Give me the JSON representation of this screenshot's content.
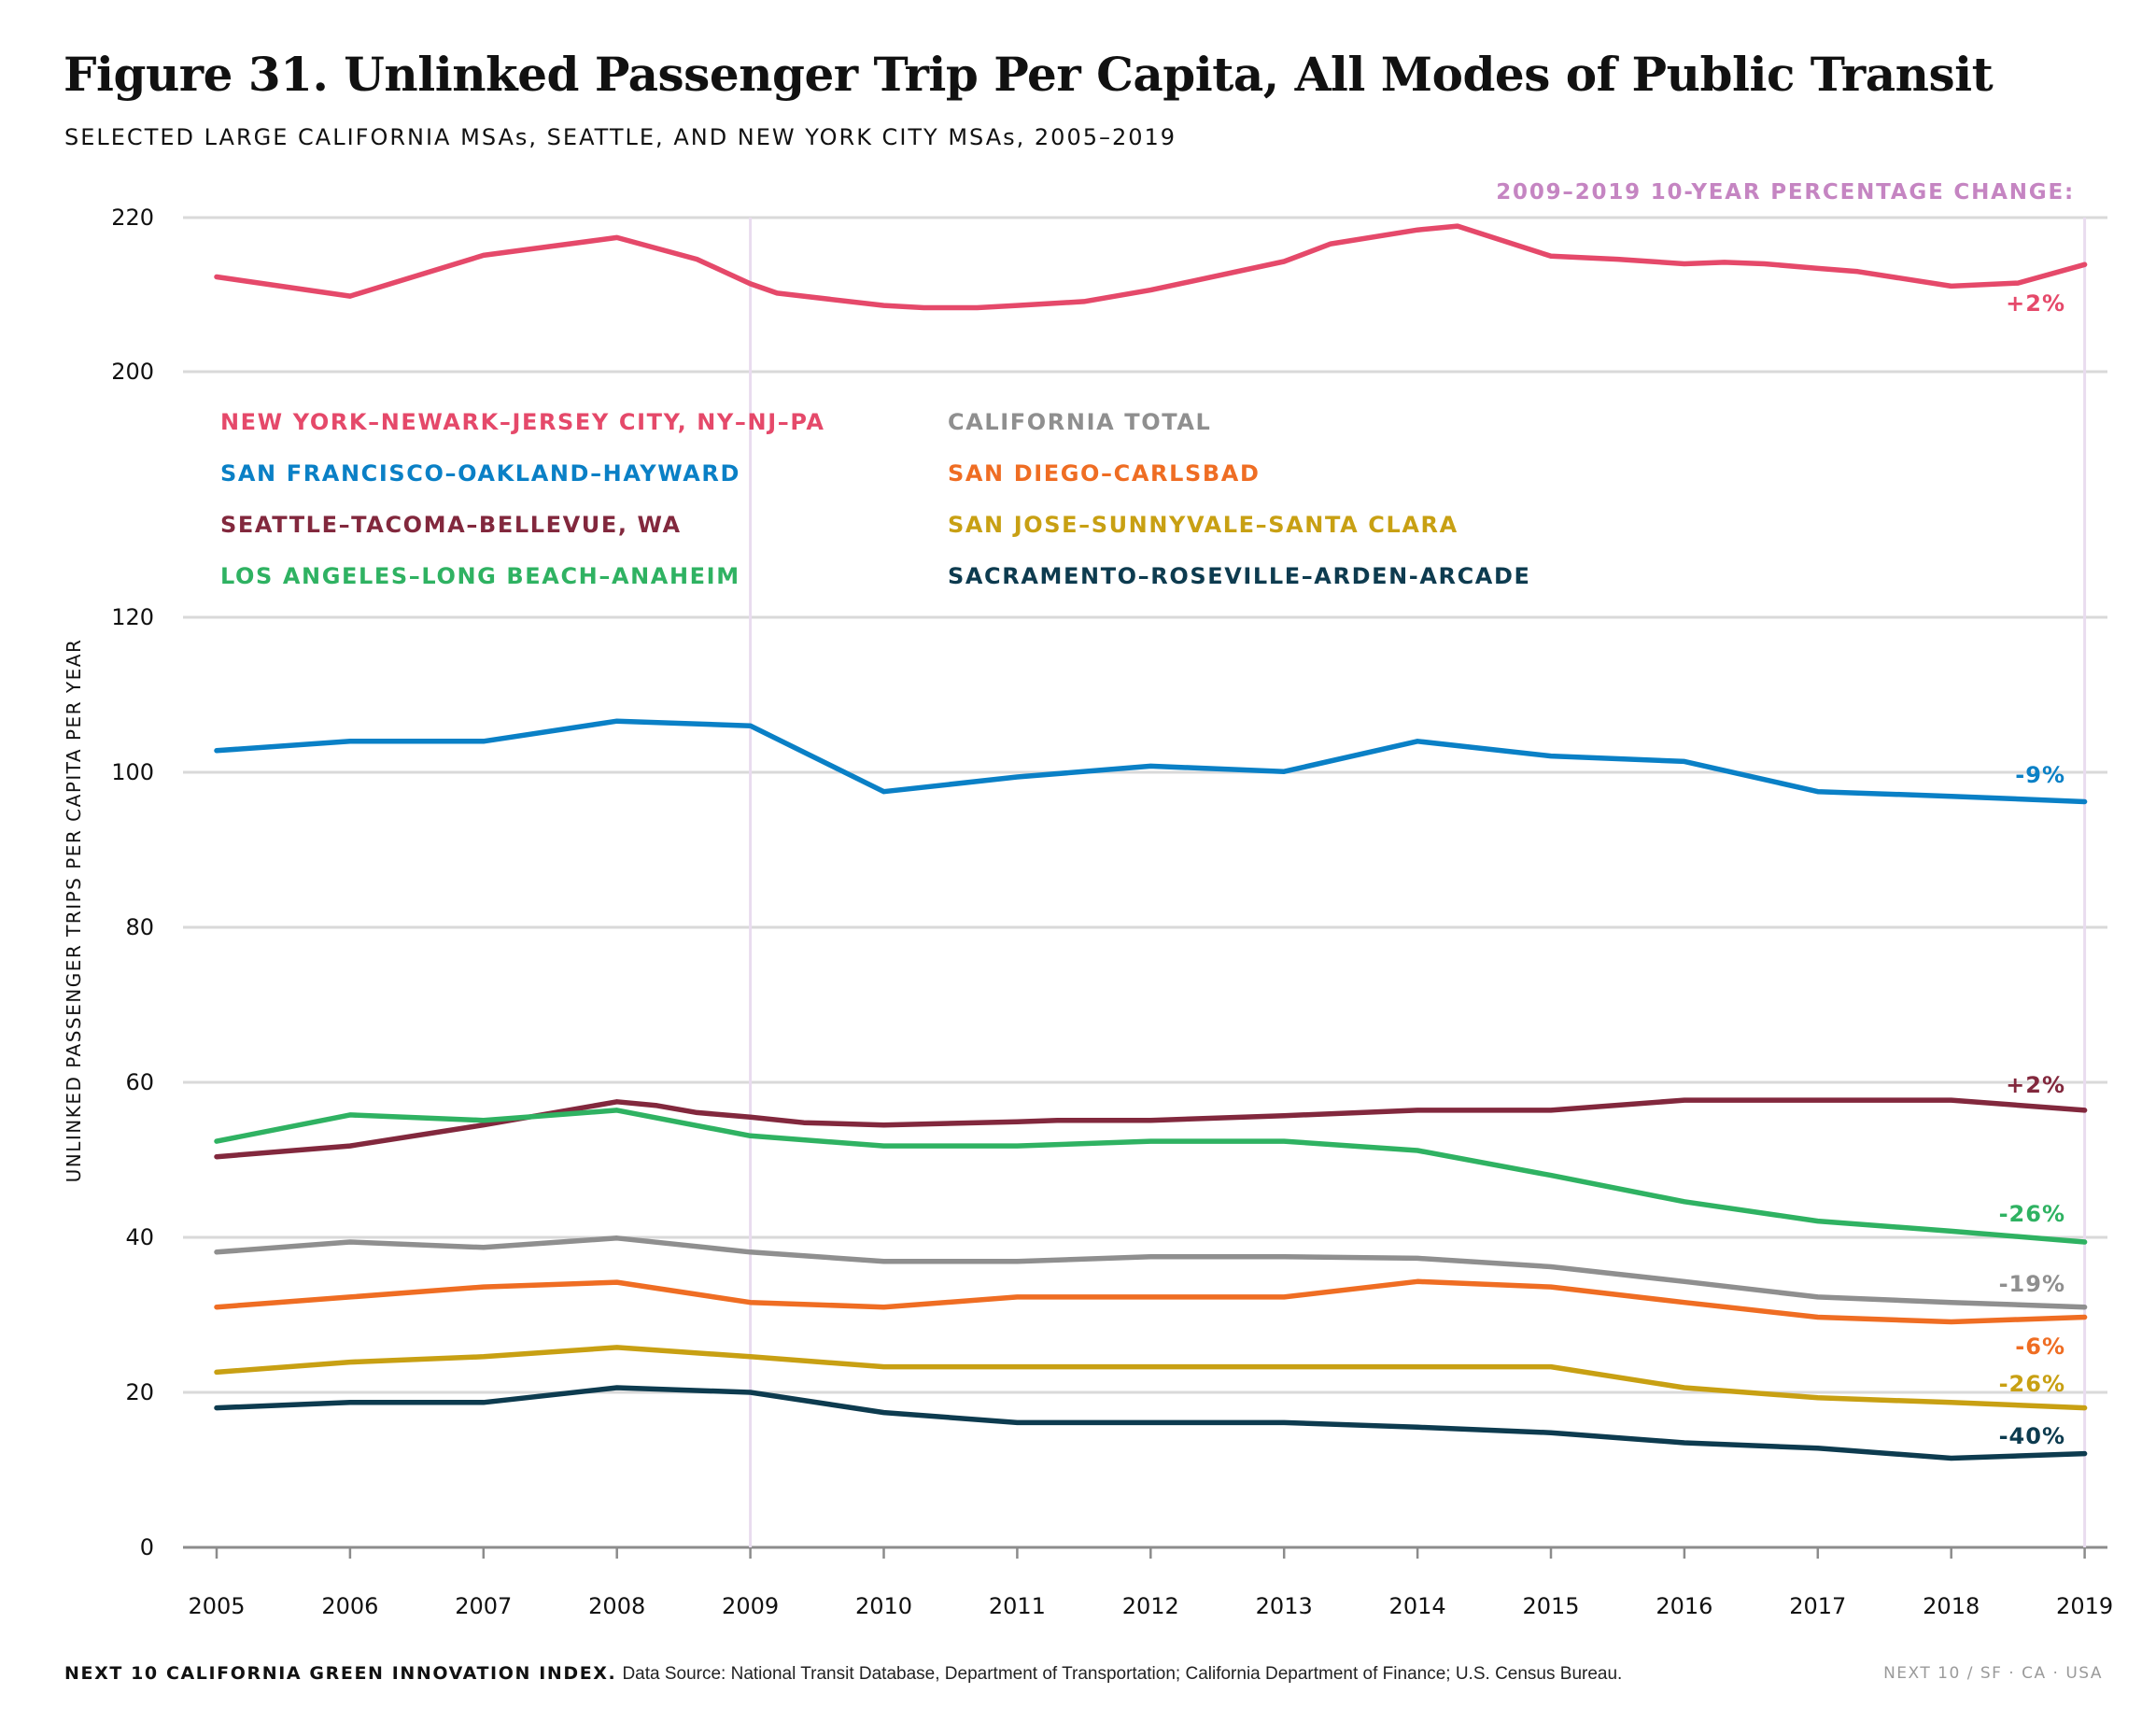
{
  "title": "Figure 31. Unlinked Passenger Trip Per Capita, All Modes of Public Transit",
  "subtitle": "SELECTED LARGE CALIFORNIA MSAs, SEATTLE, AND NEW YORK CITY MSAs, 2005–2019",
  "footer": {
    "lead": "NEXT 10 CALIFORNIA GREEN INNOVATION INDEX.",
    "source": "Data Source: National Transit Database, Department of Transportation; California Department of Finance; U.S. Census Bureau.",
    "right": "NEXT 10 / SF · CA · USA"
  },
  "chart_data": {
    "type": "line",
    "ylabel": "UNLINKED PASSENGER TRIPS PER CAPITA PER YEAR",
    "xlabel": "",
    "change_header": "2009–2019 10-YEAR PERCENTAGE CHANGE:",
    "highlight_years": [
      "2009",
      "2019"
    ],
    "y_axis_broken": true,
    "y_segments": [
      {
        "range": [
          0,
          120
        ],
        "ticks": [
          0,
          20,
          40,
          60,
          80,
          100,
          120
        ]
      },
      {
        "range": [
          200,
          220
        ],
        "ticks": [
          200,
          220
        ]
      }
    ],
    "grid": true,
    "x": [
      "2005",
      "2006",
      "2007",
      "2008",
      "2009",
      "2010",
      "2011",
      "2012",
      "2013",
      "2014",
      "2015",
      "2016",
      "2017",
      "2018",
      "2019"
    ],
    "series": [
      {
        "name": "NEW YORK–NEWARK–JERSEY CITY, NY–NJ–PA",
        "color": "#e5496a",
        "change": "+2%",
        "points": [
          [
            2005,
            212.3
          ],
          [
            2006,
            209.8
          ],
          [
            2007,
            215.1
          ],
          [
            2008,
            217.4
          ],
          [
            2008.6,
            214.6
          ],
          [
            2009,
            211.4
          ],
          [
            2009.2,
            210.2
          ],
          [
            2010,
            208.6
          ],
          [
            2010.3,
            208.3
          ],
          [
            2010.7,
            208.3
          ],
          [
            2011,
            208.6
          ],
          [
            2011.5,
            209.1
          ],
          [
            2012,
            210.6
          ],
          [
            2013,
            214.3
          ],
          [
            2013.35,
            216.6
          ],
          [
            2014,
            218.4
          ],
          [
            2014.3,
            218.9
          ],
          [
            2015,
            215.0
          ],
          [
            2015.5,
            214.6
          ],
          [
            2016,
            214.0
          ],
          [
            2016.3,
            214.2
          ],
          [
            2016.6,
            214.0
          ],
          [
            2017,
            213.4
          ],
          [
            2017.3,
            213.0
          ],
          [
            2018,
            211.1
          ],
          [
            2018.5,
            211.5
          ],
          [
            2019,
            213.9
          ]
        ]
      },
      {
        "name": "SAN FRANCISCO–OAKLAND–HAYWARD",
        "color": "#0a80c6",
        "change": "-9%",
        "points": [
          [
            2005,
            102.8
          ],
          [
            2006,
            104.0
          ],
          [
            2007,
            104.0
          ],
          [
            2008,
            106.6
          ],
          [
            2009,
            106.0
          ],
          [
            2010,
            97.5
          ],
          [
            2011,
            99.4
          ],
          [
            2012,
            100.8
          ],
          [
            2013,
            100.1
          ],
          [
            2014,
            104.0
          ],
          [
            2015,
            102.1
          ],
          [
            2016,
            101.4
          ],
          [
            2017,
            97.5
          ],
          [
            2018,
            96.9
          ],
          [
            2019,
            96.2
          ]
        ]
      },
      {
        "name": "SEATTLE–TACOMA–BELLEVUE, WA",
        "color": "#82283d",
        "change": "+2%",
        "points": [
          [
            2005,
            50.4
          ],
          [
            2006,
            51.8
          ],
          [
            2007,
            54.5
          ],
          [
            2008,
            57.5
          ],
          [
            2008.3,
            57.0
          ],
          [
            2008.6,
            56.1
          ],
          [
            2009,
            55.5
          ],
          [
            2009.4,
            54.8
          ],
          [
            2010,
            54.5
          ],
          [
            2011,
            54.9
          ],
          [
            2011.3,
            55.1
          ],
          [
            2012,
            55.1
          ],
          [
            2013,
            55.7
          ],
          [
            2014,
            56.4
          ],
          [
            2015,
            56.4
          ],
          [
            2016,
            57.7
          ],
          [
            2017,
            57.7
          ],
          [
            2018,
            57.7
          ],
          [
            2019,
            56.4
          ]
        ]
      },
      {
        "name": "LOS ANGELES–LONG BEACH–ANAHEIM",
        "color": "#2fb262",
        "change": "-26%",
        "points": [
          [
            2005,
            52.4
          ],
          [
            2006,
            55.8
          ],
          [
            2007,
            55.1
          ],
          [
            2008,
            56.4
          ],
          [
            2009,
            53.1
          ],
          [
            2010,
            51.8
          ],
          [
            2011,
            51.8
          ],
          [
            2012,
            52.4
          ],
          [
            2013,
            52.4
          ],
          [
            2014,
            51.2
          ],
          [
            2015,
            48.0
          ],
          [
            2016,
            44.6
          ],
          [
            2017,
            42.1
          ],
          [
            2018,
            40.8
          ],
          [
            2019,
            39.4
          ]
        ]
      },
      {
        "name": "CALIFORNIA TOTAL",
        "color": "#8f8f8f",
        "change": "-19%",
        "points": [
          [
            2005,
            38.1
          ],
          [
            2006,
            39.4
          ],
          [
            2007,
            38.7
          ],
          [
            2008,
            39.9
          ],
          [
            2009,
            38.1
          ],
          [
            2010,
            36.9
          ],
          [
            2011,
            36.9
          ],
          [
            2012,
            37.5
          ],
          [
            2013,
            37.5
          ],
          [
            2014,
            37.3
          ],
          [
            2015,
            36.2
          ],
          [
            2016,
            34.3
          ],
          [
            2017,
            32.3
          ],
          [
            2018,
            31.6
          ],
          [
            2019,
            31.0
          ]
        ]
      },
      {
        "name": "SAN DIEGO–CARLSBAD",
        "color": "#ef6d23",
        "change": "-6%",
        "points": [
          [
            2005,
            31.0
          ],
          [
            2006,
            32.3
          ],
          [
            2007,
            33.6
          ],
          [
            2008,
            34.2
          ],
          [
            2009,
            31.6
          ],
          [
            2010,
            31.0
          ],
          [
            2011,
            32.3
          ],
          [
            2012,
            32.3
          ],
          [
            2013,
            32.3
          ],
          [
            2014,
            34.3
          ],
          [
            2015,
            33.6
          ],
          [
            2016,
            31.6
          ],
          [
            2017,
            29.7
          ],
          [
            2018,
            29.1
          ],
          [
            2019,
            29.7
          ]
        ]
      },
      {
        "name": "SAN JOSE–SUNNYVALE–SANTA CLARA",
        "color": "#c8a013",
        "change": "-26%",
        "points": [
          [
            2005,
            22.6
          ],
          [
            2006,
            23.9
          ],
          [
            2007,
            24.6
          ],
          [
            2008,
            25.8
          ],
          [
            2009,
            24.6
          ],
          [
            2010,
            23.3
          ],
          [
            2011,
            23.3
          ],
          [
            2012,
            23.3
          ],
          [
            2013,
            23.3
          ],
          [
            2014,
            23.3
          ],
          [
            2015,
            23.3
          ],
          [
            2016,
            20.6
          ],
          [
            2017,
            19.3
          ],
          [
            2018,
            18.7
          ],
          [
            2019,
            18.0
          ]
        ]
      },
      {
        "name": "SACRAMENTO–ROSEVILLE–ARDEN-ARCADE",
        "color": "#0d3b4f",
        "change": "-40%",
        "points": [
          [
            2005,
            18.0
          ],
          [
            2006,
            18.7
          ],
          [
            2007,
            18.7
          ],
          [
            2008,
            20.6
          ],
          [
            2009,
            20.0
          ],
          [
            2010,
            17.4
          ],
          [
            2011,
            16.1
          ],
          [
            2012,
            16.1
          ],
          [
            2013,
            16.1
          ],
          [
            2014,
            15.5
          ],
          [
            2015,
            14.8
          ],
          [
            2016,
            13.5
          ],
          [
            2017,
            12.8
          ],
          [
            2018,
            11.5
          ],
          [
            2019,
            12.1
          ]
        ]
      }
    ]
  }
}
